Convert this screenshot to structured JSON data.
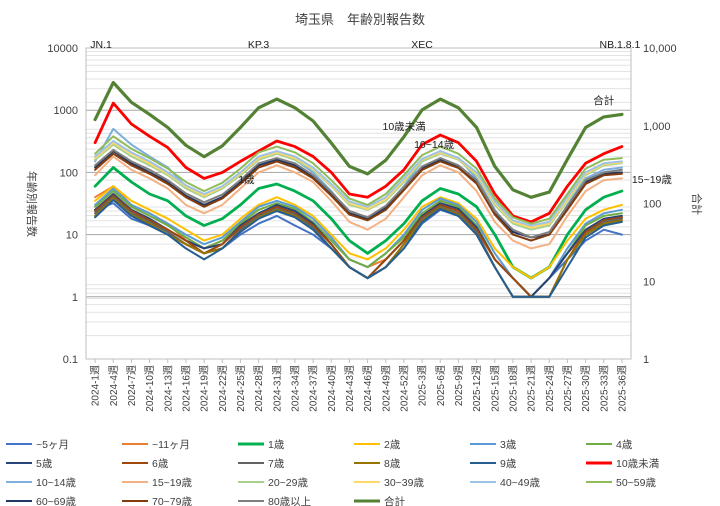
{
  "chart_data": {
    "type": "line",
    "title": "埼玉県　年齢別報告数",
    "ylabel": "年齢別報告数",
    "ylabel_right": "合計",
    "yscale": "log",
    "ylim": [
      0.1,
      10000
    ],
    "ylim_right": [
      1,
      10000
    ],
    "yticks_left": [
      "0.1",
      "1",
      "10",
      "100",
      "1000",
      "10000"
    ],
    "yticks_right": [
      "1",
      "10",
      "100",
      "1,000",
      "10,000"
    ],
    "categories": [
      "2024-1週",
      "2024-4週",
      "2024-7週",
      "2024-10週",
      "2024-13週",
      "2024-16週",
      "2024-19週",
      "2024-22週",
      "2024-25週",
      "2024-28週",
      "2024-31週",
      "2024-34週",
      "2024-37週",
      "2024-40週",
      "2024-43週",
      "2024-46週",
      "2024-49週",
      "2024-52週",
      "2025-3週",
      "2025-6週",
      "2025-9週",
      "2025-12週",
      "2025-15週",
      "2025-18週",
      "2025-21週",
      "2025-24週",
      "2025-27週",
      "2025-30週",
      "2025-33週",
      "2025-36週"
    ],
    "annotations": [
      {
        "text": "JN.1",
        "category": "2024-1週"
      },
      {
        "text": "KP.3",
        "category": "2024-28週"
      },
      {
        "text": "XEC",
        "category": "2025-3週"
      },
      {
        "text": "NB.1.8.1",
        "category": "2025-36週"
      },
      {
        "text": "1歳",
        "category": "2024-25週"
      },
      {
        "text": "10歳未満",
        "category": "2025-3週"
      },
      {
        "text": "10~14歳",
        "category": "2025-3週"
      },
      {
        "text": "15~19歳",
        "category": "2025-36週"
      },
      {
        "text": "合計",
        "category": "2025-33週"
      }
    ],
    "series": [
      {
        "name": "~5ヶ月",
        "color": "#4472c4",
        "axis": "left",
        "values": [
          25,
          32,
          18,
          14,
          10,
          7,
          5,
          6,
          10,
          15,
          20,
          14,
          10,
          6,
          3,
          2,
          3,
          6,
          15,
          25,
          20,
          10,
          3,
          1,
          1,
          2,
          4,
          8,
          12,
          10
        ]
      },
      {
        "name": "~11ヶ月",
        "color": "#ed7d31",
        "axis": "left",
        "values": [
          40,
          60,
          30,
          22,
          15,
          8,
          6,
          8,
          12,
          20,
          30,
          22,
          15,
          8,
          4,
          3,
          4,
          8,
          20,
          35,
          28,
          14,
          4,
          2,
          1,
          2,
          5,
          10,
          15,
          18
        ]
      },
      {
        "name": "1歳",
        "color": "#00b050",
        "axis": "left",
        "values": [
          60,
          120,
          70,
          45,
          35,
          20,
          14,
          18,
          30,
          55,
          65,
          50,
          35,
          18,
          8,
          5,
          8,
          15,
          35,
          55,
          45,
          28,
          10,
          3,
          2,
          3,
          10,
          25,
          40,
          50
        ]
      },
      {
        "name": "2歳",
        "color": "#ffc000",
        "axis": "left",
        "values": [
          35,
          60,
          35,
          25,
          18,
          12,
          8,
          10,
          18,
          30,
          40,
          30,
          20,
          10,
          5,
          4,
          6,
          12,
          28,
          40,
          32,
          18,
          6,
          3,
          2,
          3,
          8,
          18,
          25,
          30
        ]
      },
      {
        "name": "3歳",
        "color": "#5b9bd5",
        "axis": "left",
        "values": [
          30,
          55,
          30,
          22,
          15,
          10,
          7,
          9,
          16,
          28,
          35,
          28,
          18,
          9,
          4,
          3,
          5,
          10,
          25,
          38,
          30,
          16,
          5,
          2,
          1,
          2,
          6,
          15,
          22,
          25
        ]
      },
      {
        "name": "4歳",
        "color": "#70ad47",
        "axis": "left",
        "values": [
          28,
          50,
          28,
          20,
          14,
          9,
          6,
          8,
          15,
          25,
          32,
          26,
          16,
          8,
          4,
          3,
          5,
          9,
          22,
          35,
          28,
          14,
          4,
          2,
          1,
          2,
          5,
          14,
          20,
          22
        ]
      },
      {
        "name": "5歳",
        "color": "#264478",
        "axis": "left",
        "values": [
          25,
          45,
          25,
          18,
          12,
          8,
          6,
          7,
          14,
          22,
          30,
          24,
          15,
          7,
          3,
          2,
          4,
          8,
          20,
          32,
          26,
          13,
          4,
          2,
          1,
          2,
          5,
          12,
          18,
          20
        ]
      },
      {
        "name": "6歳",
        "color": "#9e480e",
        "axis": "left",
        "values": [
          24,
          42,
          24,
          17,
          12,
          8,
          5,
          7,
          13,
          21,
          28,
          22,
          14,
          7,
          3,
          2,
          4,
          8,
          19,
          30,
          24,
          12,
          4,
          2,
          1,
          1,
          4,
          11,
          17,
          19
        ]
      },
      {
        "name": "7歳",
        "color": "#636363",
        "axis": "left",
        "values": [
          22,
          40,
          22,
          16,
          11,
          7,
          5,
          6,
          12,
          20,
          26,
          21,
          13,
          6,
          3,
          2,
          3,
          7,
          18,
          28,
          22,
          11,
          3,
          1,
          1,
          1,
          4,
          10,
          16,
          18
        ]
      },
      {
        "name": "8歳",
        "color": "#997300",
        "axis": "left",
        "values": [
          20,
          38,
          21,
          15,
          10,
          7,
          5,
          6,
          11,
          19,
          25,
          20,
          12,
          6,
          3,
          2,
          3,
          7,
          17,
          27,
          21,
          10,
          3,
          1,
          1,
          1,
          4,
          10,
          15,
          17
        ]
      },
      {
        "name": "9歳",
        "color": "#255e91",
        "axis": "left",
        "values": [
          19,
          36,
          20,
          14,
          10,
          6,
          4,
          6,
          11,
          18,
          24,
          19,
          12,
          6,
          3,
          2,
          3,
          6,
          16,
          26,
          20,
          10,
          3,
          1,
          1,
          1,
          3,
          9,
          14,
          16
        ]
      },
      {
        "name": "10歳未満",
        "color": "#ff0000",
        "axis": "left",
        "values": [
          300,
          1300,
          600,
          380,
          250,
          120,
          80,
          100,
          150,
          220,
          320,
          260,
          180,
          100,
          45,
          40,
          60,
          110,
          280,
          400,
          300,
          150,
          45,
          20,
          16,
          22,
          60,
          140,
          200,
          260
        ]
      },
      {
        "name": "10~14歳",
        "color": "#7cafdd",
        "axis": "left",
        "values": [
          150,
          500,
          280,
          180,
          120,
          60,
          40,
          55,
          90,
          160,
          200,
          160,
          100,
          50,
          22,
          18,
          28,
          60,
          150,
          220,
          170,
          80,
          25,
          10,
          8,
          10,
          30,
          80,
          110,
          120
        ]
      },
      {
        "name": "15~19歳",
        "color": "#f4b183",
        "axis": "left",
        "values": [
          90,
          180,
          110,
          80,
          55,
          30,
          22,
          30,
          55,
          100,
          130,
          100,
          70,
          35,
          16,
          12,
          18,
          40,
          90,
          130,
          100,
          50,
          16,
          8,
          6,
          7,
          20,
          50,
          75,
          80
        ]
      },
      {
        "name": "20~29歳",
        "color": "#a9d18e",
        "axis": "left",
        "values": [
          160,
          280,
          180,
          130,
          90,
          55,
          40,
          55,
          90,
          160,
          200,
          160,
          110,
          60,
          30,
          25,
          35,
          70,
          150,
          200,
          160,
          90,
          30,
          15,
          12,
          14,
          35,
          90,
          130,
          140
        ]
      },
      {
        "name": "30~39歳",
        "color": "#ffd966",
        "axis": "left",
        "values": [
          170,
          300,
          200,
          140,
          95,
          60,
          42,
          58,
          95,
          170,
          210,
          170,
          115,
          62,
          32,
          26,
          37,
          75,
          160,
          210,
          165,
          95,
          32,
          16,
          13,
          15,
          37,
          95,
          135,
          145
        ]
      },
      {
        "name": "40~49歳",
        "color": "#9dc3e6",
        "axis": "left",
        "values": [
          180,
          320,
          210,
          150,
          100,
          62,
          45,
          60,
          100,
          180,
          220,
          180,
          120,
          65,
          34,
          28,
          40,
          80,
          165,
          220,
          170,
          100,
          34,
          17,
          14,
          16,
          40,
          100,
          140,
          150
        ]
      },
      {
        "name": "50~59歳",
        "color": "#8fbc5a",
        "axis": "left",
        "values": [
          200,
          380,
          240,
          170,
          115,
          70,
          50,
          68,
          115,
          210,
          260,
          210,
          140,
          75,
          38,
          30,
          45,
          90,
          190,
          260,
          200,
          115,
          38,
          19,
          15,
          18,
          45,
          115,
          160,
          170
        ]
      },
      {
        "name": "60~69歳",
        "color": "#1f3864",
        "axis": "left",
        "values": [
          120,
          220,
          140,
          100,
          70,
          42,
          30,
          40,
          70,
          130,
          160,
          130,
          85,
          45,
          22,
          18,
          27,
          55,
          115,
          160,
          125,
          70,
          22,
          11,
          9,
          10,
          27,
          70,
          95,
          100
        ]
      },
      {
        "name": "70~79歳",
        "color": "#843c0c",
        "axis": "left",
        "values": [
          110,
          200,
          130,
          95,
          65,
          40,
          28,
          38,
          65,
          120,
          150,
          120,
          80,
          42,
          21,
          17,
          25,
          52,
          110,
          150,
          118,
          66,
          21,
          10,
          8,
          10,
          25,
          65,
          90,
          95
        ]
      },
      {
        "name": "80歳以上",
        "color": "#7f7f7f",
        "axis": "left",
        "values": [
          130,
          230,
          150,
          110,
          75,
          46,
          33,
          44,
          75,
          140,
          170,
          140,
          90,
          48,
          24,
          19,
          29,
          58,
          125,
          170,
          130,
          75,
          24,
          12,
          9,
          11,
          29,
          75,
          100,
          110
        ]
      },
      {
        "name": "合計",
        "color": "#548235",
        "axis": "right",
        "values": [
          1200,
          3600,
          2000,
          1400,
          950,
          560,
          400,
          550,
          950,
          1700,
          2200,
          1700,
          1150,
          600,
          300,
          240,
          360,
          720,
          1600,
          2200,
          1700,
          950,
          300,
          150,
          120,
          140,
          370,
          950,
          1300,
          1400
        ]
      }
    ]
  }
}
